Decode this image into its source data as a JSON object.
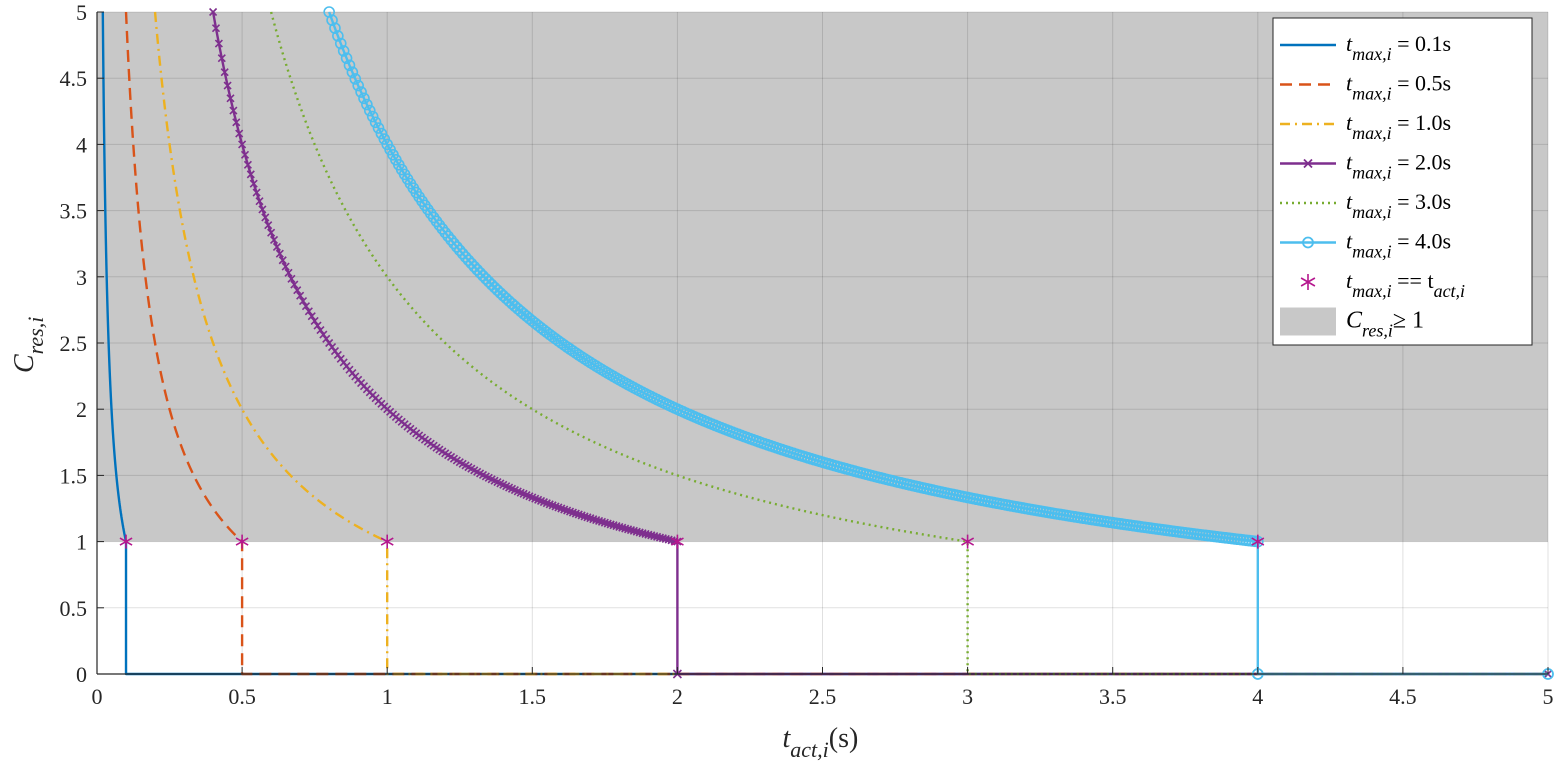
{
  "chart_data": {
    "type": "line",
    "xlabel": "t_act,i(s)",
    "xlabel_parts": {
      "main": "t",
      "sub": "act,i",
      "tail": "(s)"
    },
    "ylabel": "C_res,i",
    "ylabel_parts": {
      "main": "C",
      "sub": "res,i"
    },
    "xlim": [
      0,
      5
    ],
    "ylim": [
      0,
      5
    ],
    "grid": true,
    "legend_position": "top-right",
    "x_ticks": [
      "0",
      "0.5",
      "1",
      "1.5",
      "2",
      "2.5",
      "3",
      "3.5",
      "4",
      "4.5",
      "5"
    ],
    "y_ticks": [
      "0",
      "0.5",
      "1",
      "1.5",
      "2",
      "2.5",
      "3",
      "3.5",
      "4",
      "4.5",
      "5"
    ],
    "shaded_region": {
      "label": "C_res,i ≥ 1",
      "y_from": 1,
      "y_to": 5,
      "color": "#c8c8c8"
    },
    "series": [
      {
        "name": "t_max,i = 0.1s",
        "label_main": "t",
        "label_sub": "max,i",
        "label_tail": " = 0.1s",
        "t_max": 0.1,
        "color": "#0072BD",
        "style": "solid",
        "marker": "none"
      },
      {
        "name": "t_max,i = 0.5s",
        "label_main": "t",
        "label_sub": "max,i",
        "label_tail": " = 0.5s",
        "t_max": 0.5,
        "color": "#D95319",
        "style": "dashed",
        "marker": "none"
      },
      {
        "name": "t_max,i = 1.0s",
        "label_main": "t",
        "label_sub": "max,i",
        "label_tail": " = 1.0s",
        "t_max": 1.0,
        "color": "#EDB120",
        "style": "dashdot",
        "marker": "none"
      },
      {
        "name": "t_max,i = 2.0s",
        "label_main": "t",
        "label_sub": "max,i",
        "label_tail": " = 2.0s",
        "t_max": 2.0,
        "color": "#7E2F8E",
        "style": "solid",
        "marker": "x"
      },
      {
        "name": "t_max,i = 3.0s",
        "label_main": "t",
        "label_sub": "max,i",
        "label_tail": " = 3.0s",
        "t_max": 3.0,
        "color": "#77AC30",
        "style": "dotted",
        "marker": "none"
      },
      {
        "name": "t_max,i = 4.0s",
        "label_main": "t",
        "label_sub": "max,i",
        "label_tail": " = 4.0s",
        "t_max": 4.0,
        "color": "#4DBEEE",
        "style": "solid",
        "marker": "o"
      }
    ],
    "equal_points": {
      "name": "t_max,i == t_act,i",
      "label_main": "t",
      "label_sub": "max,i",
      "label_mid": " == t",
      "label_sub2": "act,i",
      "color": "#B5178E",
      "points": [
        [
          0.1,
          1
        ],
        [
          0.5,
          1
        ],
        [
          1.0,
          1
        ],
        [
          2.0,
          1
        ],
        [
          3.0,
          1
        ],
        [
          4.0,
          1
        ]
      ]
    },
    "legend_shade": {
      "label_main": "C",
      "label_sub": "res,i",
      "label_tail": "≥ 1"
    }
  }
}
